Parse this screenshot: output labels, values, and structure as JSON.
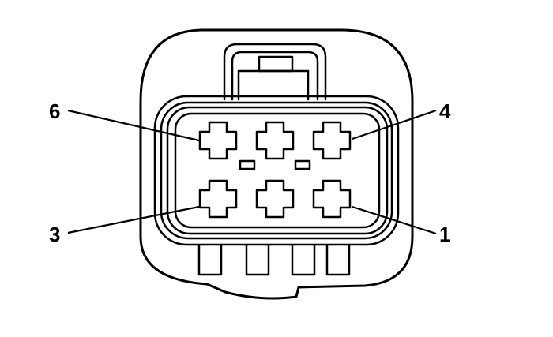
{
  "diagram": {
    "pin_labels": {
      "pin_6": "6",
      "pin_4": "4",
      "pin_3": "3",
      "pin_1": "1"
    }
  }
}
